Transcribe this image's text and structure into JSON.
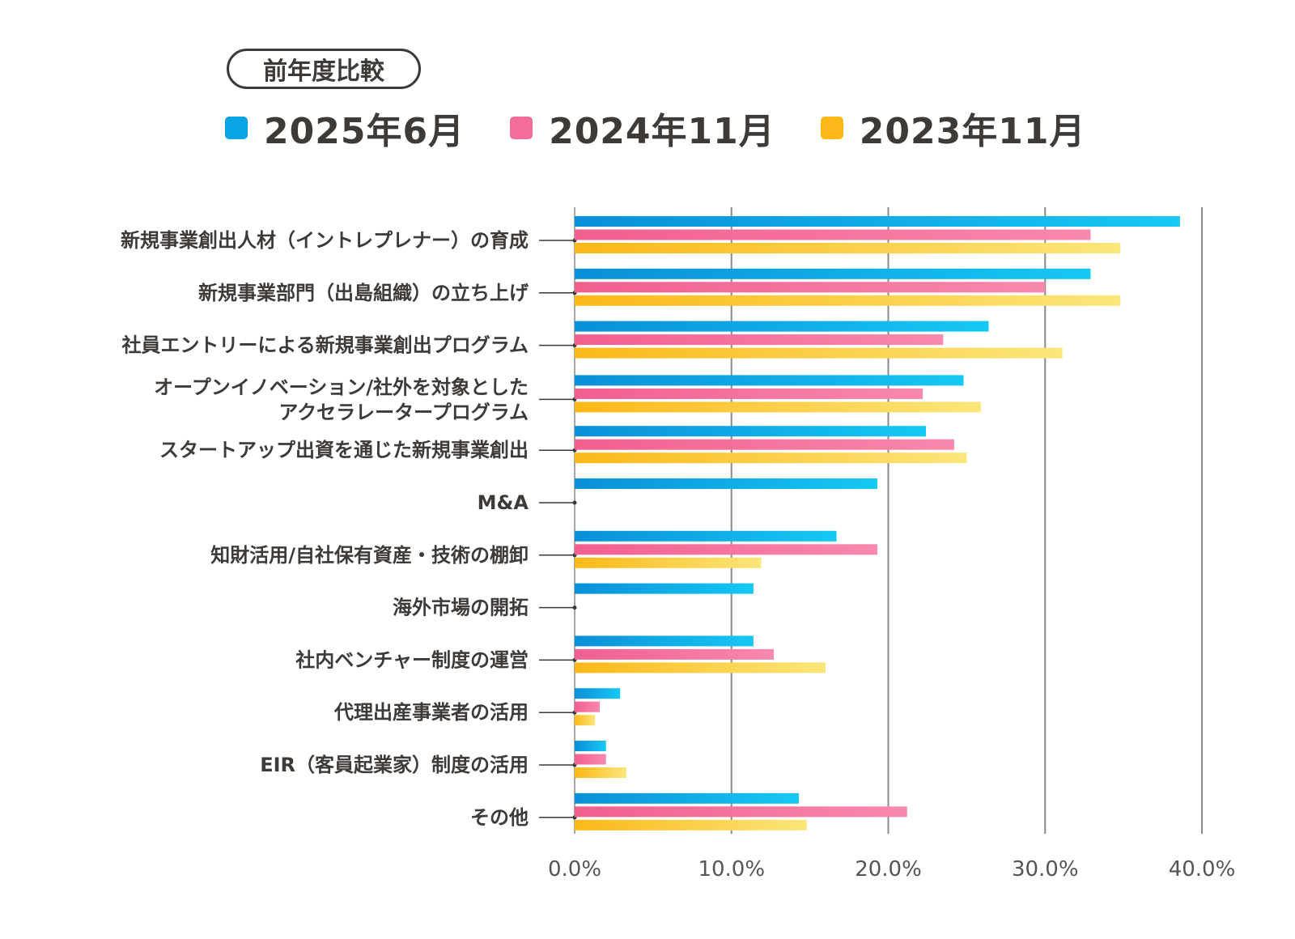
{
  "badge": "前年度比較",
  "colors": {
    "blue": "#19aeea",
    "blue_dark": "#0a8fd8",
    "pink": "#f36d98",
    "yellow": "#fbc21a",
    "grid": "#8a8a8a",
    "text": "#3d3a38"
  },
  "chart_data": {
    "type": "bar",
    "orientation": "horizontal",
    "title": "前年度比較",
    "xlabel": "",
    "ylabel": "",
    "xlim": [
      0,
      40
    ],
    "ticks": [
      0,
      10,
      20,
      30,
      40
    ],
    "tick_labels": [
      "0.0%",
      "10.0%",
      "20.0%",
      "30.0%",
      "40.0%"
    ],
    "grid": true,
    "legend_position": "top",
    "categories": [
      [
        "新規事業創出人材（イントレプレナー）の育成"
      ],
      [
        "新規事業部門（出島組織）の立ち上げ"
      ],
      [
        "社員エントリーによる新規事業創出プログラム"
      ],
      [
        "オープンイノベーション/社外を対象とした",
        "アクセラレータープログラム"
      ],
      [
        "スタートアップ出資を通じた新規事業創出"
      ],
      [
        "M&A"
      ],
      [
        "知財活用/自社保有資産・技術の棚卸"
      ],
      [
        "海外市場の開拓"
      ],
      [
        "社内ベンチャー制度の運営"
      ],
      [
        "代理出産事業者の活用"
      ],
      [
        "EIR（客員起業家）制度の活用"
      ],
      [
        "その他"
      ]
    ],
    "series": [
      {
        "name": "2025年6月",
        "color": "#19aeea",
        "values": [
          38.6,
          32.9,
          26.4,
          24.8,
          22.4,
          19.3,
          16.7,
          11.4,
          11.4,
          2.9,
          2.0,
          14.3
        ]
      },
      {
        "name": "2024年11月",
        "color": "#f36d98",
        "values": [
          32.9,
          30.0,
          23.5,
          22.2,
          24.2,
          null,
          19.3,
          null,
          12.7,
          1.6,
          2.0,
          21.2
        ]
      },
      {
        "name": "2023年11月",
        "color": "#fbc21a",
        "values": [
          34.8,
          34.8,
          31.1,
          25.9,
          25.0,
          null,
          11.9,
          null,
          16.0,
          1.3,
          3.3,
          14.8
        ]
      }
    ]
  }
}
